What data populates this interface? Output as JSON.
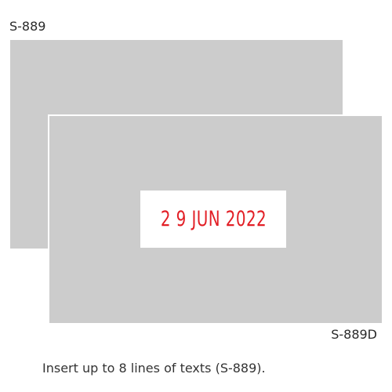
{
  "stamps": {
    "top_model_label": "S-889",
    "bottom_model_label": "S-889D",
    "date_impression": "2 9 JUN 2022",
    "date_color": "#e21f26",
    "plate_color": "#cccccc"
  },
  "caption": "Insert up to 8 lines of texts (S-889)."
}
